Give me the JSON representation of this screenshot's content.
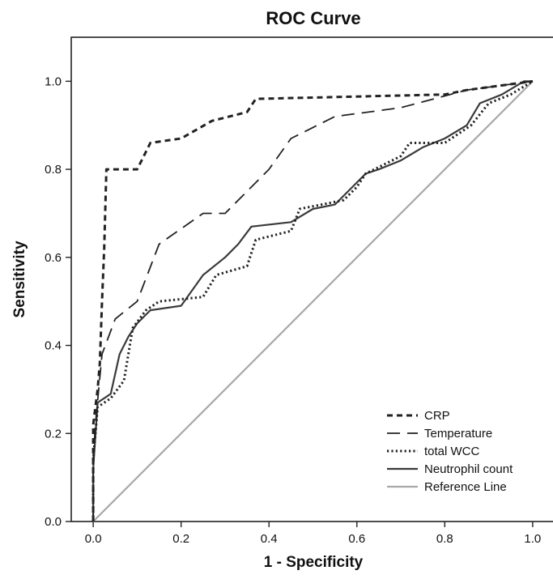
{
  "chart_data": {
    "type": "line",
    "title": "ROC Curve",
    "xlabel": "1 - Specificity",
    "ylabel": "Sensitivity",
    "xlim": [
      -0.05,
      1.05
    ],
    "ylim": [
      0.0,
      1.1
    ],
    "xticks": [
      "0.0",
      "0.2",
      "0.4",
      "0.6",
      "0.8",
      "1.0"
    ],
    "yticks": [
      "0.0",
      "0.2",
      "0.4",
      "0.6",
      "0.8",
      "1.0"
    ],
    "grid": false,
    "legend_position": "bottom-right",
    "series": [
      {
        "name": "CRP",
        "style": "short-dash",
        "color": "#222222",
        "points": [
          [
            0,
            0
          ],
          [
            0,
            0.22
          ],
          [
            0.005,
            0.26
          ],
          [
            0.01,
            0.3
          ],
          [
            0.015,
            0.36
          ],
          [
            0.02,
            0.5
          ],
          [
            0.025,
            0.62
          ],
          [
            0.03,
            0.8
          ],
          [
            0.1,
            0.8
          ],
          [
            0.13,
            0.86
          ],
          [
            0.2,
            0.87
          ],
          [
            0.27,
            0.91
          ],
          [
            0.35,
            0.93
          ],
          [
            0.37,
            0.96
          ],
          [
            0.8,
            0.97
          ],
          [
            0.85,
            0.98
          ],
          [
            1.0,
            1.0
          ]
        ]
      },
      {
        "name": "Temperature",
        "style": "long-dash",
        "color": "#222222",
        "points": [
          [
            0,
            0
          ],
          [
            0,
            0.14
          ],
          [
            0.005,
            0.22
          ],
          [
            0.02,
            0.38
          ],
          [
            0.05,
            0.46
          ],
          [
            0.1,
            0.5
          ],
          [
            0.15,
            0.63
          ],
          [
            0.25,
            0.7
          ],
          [
            0.3,
            0.7
          ],
          [
            0.4,
            0.8
          ],
          [
            0.45,
            0.87
          ],
          [
            0.55,
            0.92
          ],
          [
            0.7,
            0.94
          ],
          [
            0.85,
            0.98
          ],
          [
            1.0,
            1.0
          ]
        ]
      },
      {
        "name": "total WCC",
        "style": "dotted",
        "color": "#222222",
        "points": [
          [
            0,
            0
          ],
          [
            0,
            0.14
          ],
          [
            0.01,
            0.26
          ],
          [
            0.04,
            0.28
          ],
          [
            0.07,
            0.32
          ],
          [
            0.09,
            0.44
          ],
          [
            0.12,
            0.48
          ],
          [
            0.15,
            0.5
          ],
          [
            0.25,
            0.51
          ],
          [
            0.28,
            0.56
          ],
          [
            0.35,
            0.58
          ],
          [
            0.37,
            0.64
          ],
          [
            0.45,
            0.66
          ],
          [
            0.47,
            0.71
          ],
          [
            0.52,
            0.72
          ],
          [
            0.57,
            0.73
          ],
          [
            0.6,
            0.76
          ],
          [
            0.62,
            0.79
          ],
          [
            0.7,
            0.83
          ],
          [
            0.72,
            0.86
          ],
          [
            0.8,
            0.86
          ],
          [
            0.86,
            0.9
          ],
          [
            0.9,
            0.95
          ],
          [
            0.95,
            0.97
          ],
          [
            1.0,
            1.0
          ]
        ]
      },
      {
        "name": "Neutrophil count",
        "style": "solid",
        "color": "#3a3a3a",
        "points": [
          [
            0,
            0
          ],
          [
            0,
            0.12
          ],
          [
            0.01,
            0.27
          ],
          [
            0.04,
            0.29
          ],
          [
            0.06,
            0.38
          ],
          [
            0.08,
            0.42
          ],
          [
            0.1,
            0.45
          ],
          [
            0.13,
            0.48
          ],
          [
            0.2,
            0.49
          ],
          [
            0.25,
            0.56
          ],
          [
            0.3,
            0.6
          ],
          [
            0.33,
            0.63
          ],
          [
            0.36,
            0.67
          ],
          [
            0.45,
            0.68
          ],
          [
            0.5,
            0.71
          ],
          [
            0.55,
            0.72
          ],
          [
            0.62,
            0.79
          ],
          [
            0.65,
            0.8
          ],
          [
            0.7,
            0.82
          ],
          [
            0.75,
            0.85
          ],
          [
            0.8,
            0.87
          ],
          [
            0.85,
            0.9
          ],
          [
            0.88,
            0.95
          ],
          [
            0.93,
            0.97
          ],
          [
            0.98,
            1.0
          ],
          [
            1.0,
            1.0
          ]
        ]
      },
      {
        "name": "Reference Line",
        "style": "solid",
        "color": "#a8a8a8",
        "points": [
          [
            0,
            0
          ],
          [
            1,
            1
          ]
        ]
      }
    ]
  }
}
